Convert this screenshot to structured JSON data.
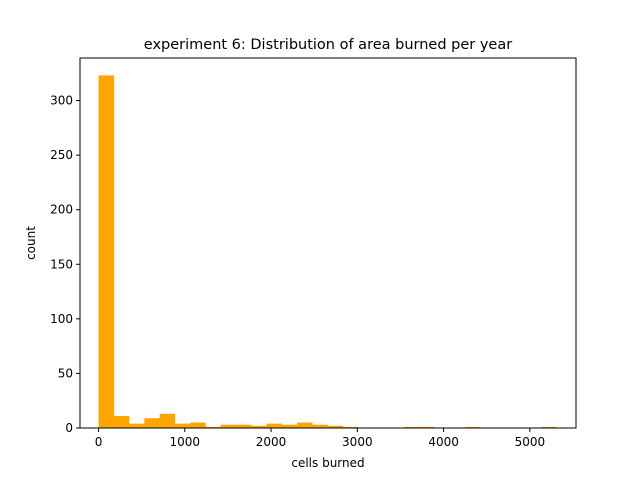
{
  "chart_data": {
    "type": "bar",
    "title": "experiment 6: Distribution of area burned per year",
    "xlabel": "cells burned",
    "ylabel": "count",
    "xlim": [
      -215,
      5535
    ],
    "ylim": [
      0,
      339
    ],
    "xticks": [
      0,
      1000,
      2000,
      3000,
      4000,
      5000
    ],
    "yticks": [
      0,
      50,
      100,
      150,
      200,
      250,
      300
    ],
    "bar_color": "#ffa500",
    "bin_edges": [
      0,
      177,
      354,
      531,
      708,
      885,
      1062,
      1239,
      1416,
      1593,
      1770,
      1947,
      2124,
      2301,
      2478,
      2655,
      2832,
      3009,
      3186,
      3363,
      3540,
      3717,
      3894,
      4071,
      4248,
      4425,
      4602,
      4779,
      4956,
      5133,
      5310
    ],
    "counts": [
      323,
      11,
      4,
      9,
      13,
      4,
      5,
      1,
      3,
      3,
      2,
      4,
      3,
      5,
      3,
      2,
      1,
      0,
      0,
      0,
      1,
      1,
      0,
      0,
      1,
      0,
      0,
      0,
      0,
      1
    ],
    "grid": false,
    "legend": "none"
  }
}
